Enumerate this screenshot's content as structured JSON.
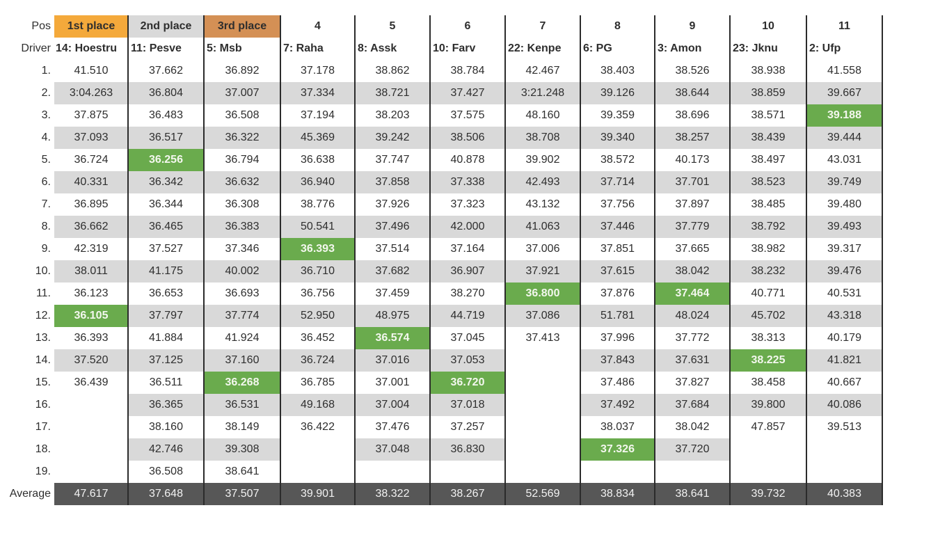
{
  "labels": {
    "pos": "Pos",
    "driver": "Driver",
    "average": "Average"
  },
  "colors": {
    "first": "#f4a93b",
    "second": "#d9d9d9",
    "third": "#d49055",
    "stripe": "#d9d9d9",
    "best_lap": "#6aab4d",
    "average_row": "#575757"
  },
  "positions": [
    "1st place",
    "2nd place",
    "3rd place",
    "4",
    "5",
    "6",
    "7",
    "8",
    "9",
    "10",
    "11"
  ],
  "drivers": [
    "14: Hoestru",
    "11: Pesve",
    "5: Msb",
    "7: Raha",
    "8: Assk",
    "10: Farv",
    "22: Kenpe",
    "6: PG",
    "3: Amon",
    "23: Jknu",
    "2: Ufp"
  ],
  "laps": [
    {
      "lap": "1.",
      "times": [
        "41.510",
        "37.662",
        "36.892",
        "37.178",
        "38.862",
        "38.784",
        "42.467",
        "38.403",
        "38.526",
        "38.938",
        "41.558"
      ]
    },
    {
      "lap": "2.",
      "times": [
        "3:04.263",
        "36.804",
        "37.007",
        "37.334",
        "38.721",
        "37.427",
        "3:21.248",
        "39.126",
        "38.644",
        "38.859",
        "39.667"
      ]
    },
    {
      "lap": "3.",
      "times": [
        "37.875",
        "36.483",
        "36.508",
        "37.194",
        "38.203",
        "37.575",
        "48.160",
        "39.359",
        "38.696",
        "38.571",
        "39.188"
      ]
    },
    {
      "lap": "4.",
      "times": [
        "37.093",
        "36.517",
        "36.322",
        "45.369",
        "39.242",
        "38.506",
        "38.708",
        "39.340",
        "38.257",
        "38.439",
        "39.444"
      ]
    },
    {
      "lap": "5.",
      "times": [
        "36.724",
        "36.256",
        "36.794",
        "36.638",
        "37.747",
        "40.878",
        "39.902",
        "38.572",
        "40.173",
        "38.497",
        "43.031"
      ]
    },
    {
      "lap": "6.",
      "times": [
        "40.331",
        "36.342",
        "36.632",
        "36.940",
        "37.858",
        "37.338",
        "42.493",
        "37.714",
        "37.701",
        "38.523",
        "39.749"
      ]
    },
    {
      "lap": "7.",
      "times": [
        "36.895",
        "36.344",
        "36.308",
        "38.776",
        "37.926",
        "37.323",
        "43.132",
        "37.756",
        "37.897",
        "38.485",
        "39.480"
      ]
    },
    {
      "lap": "8.",
      "times": [
        "36.662",
        "36.465",
        "36.383",
        "50.541",
        "37.496",
        "42.000",
        "41.063",
        "37.446",
        "37.779",
        "38.792",
        "39.493"
      ]
    },
    {
      "lap": "9.",
      "times": [
        "42.319",
        "37.527",
        "37.346",
        "36.393",
        "37.514",
        "37.164",
        "37.006",
        "37.851",
        "37.665",
        "38.982",
        "39.317"
      ]
    },
    {
      "lap": "10.",
      "times": [
        "38.011",
        "41.175",
        "40.002",
        "36.710",
        "37.682",
        "36.907",
        "37.921",
        "37.615",
        "38.042",
        "38.232",
        "39.476"
      ]
    },
    {
      "lap": "11.",
      "times": [
        "36.123",
        "36.653",
        "36.693",
        "36.756",
        "37.459",
        "38.270",
        "36.800",
        "37.876",
        "37.464",
        "40.771",
        "40.531"
      ]
    },
    {
      "lap": "12.",
      "times": [
        "36.105",
        "37.797",
        "37.774",
        "52.950",
        "48.975",
        "44.719",
        "37.086",
        "51.781",
        "48.024",
        "45.702",
        "43.318"
      ]
    },
    {
      "lap": "13.",
      "times": [
        "36.393",
        "41.884",
        "41.924",
        "36.452",
        "36.574",
        "37.045",
        "37.413",
        "37.996",
        "37.772",
        "38.313",
        "40.179"
      ]
    },
    {
      "lap": "14.",
      "times": [
        "37.520",
        "37.125",
        "37.160",
        "36.724",
        "37.016",
        "37.053",
        "",
        "37.843",
        "37.631",
        "38.225",
        "41.821"
      ]
    },
    {
      "lap": "15.",
      "times": [
        "36.439",
        "36.511",
        "36.268",
        "36.785",
        "37.001",
        "36.720",
        "",
        "37.486",
        "37.827",
        "38.458",
        "40.667"
      ]
    },
    {
      "lap": "16.",
      "times": [
        "",
        "36.365",
        "36.531",
        "49.168",
        "37.004",
        "37.018",
        "",
        "37.492",
        "37.684",
        "39.800",
        "40.086"
      ]
    },
    {
      "lap": "17.",
      "times": [
        "",
        "38.160",
        "38.149",
        "36.422",
        "37.476",
        "37.257",
        "",
        "38.037",
        "38.042",
        "47.857",
        "39.513"
      ]
    },
    {
      "lap": "18.",
      "times": [
        "",
        "42.746",
        "39.308",
        "",
        "37.048",
        "36.830",
        "",
        "37.326",
        "37.720",
        "",
        ""
      ]
    },
    {
      "lap": "19.",
      "times": [
        "",
        "36.508",
        "38.641",
        "",
        "",
        "",
        "",
        "",
        "",
        "",
        ""
      ]
    }
  ],
  "best_laps": [
    "12.",
    "5.",
    "15.",
    "9.",
    "13.",
    "15.",
    "11.",
    "18.",
    "11.",
    "14.",
    "3."
  ],
  "averages": [
    "47.617",
    "37.648",
    "37.507",
    "39.901",
    "38.322",
    "38.267",
    "52.569",
    "38.834",
    "38.641",
    "39.732",
    "40.383"
  ]
}
